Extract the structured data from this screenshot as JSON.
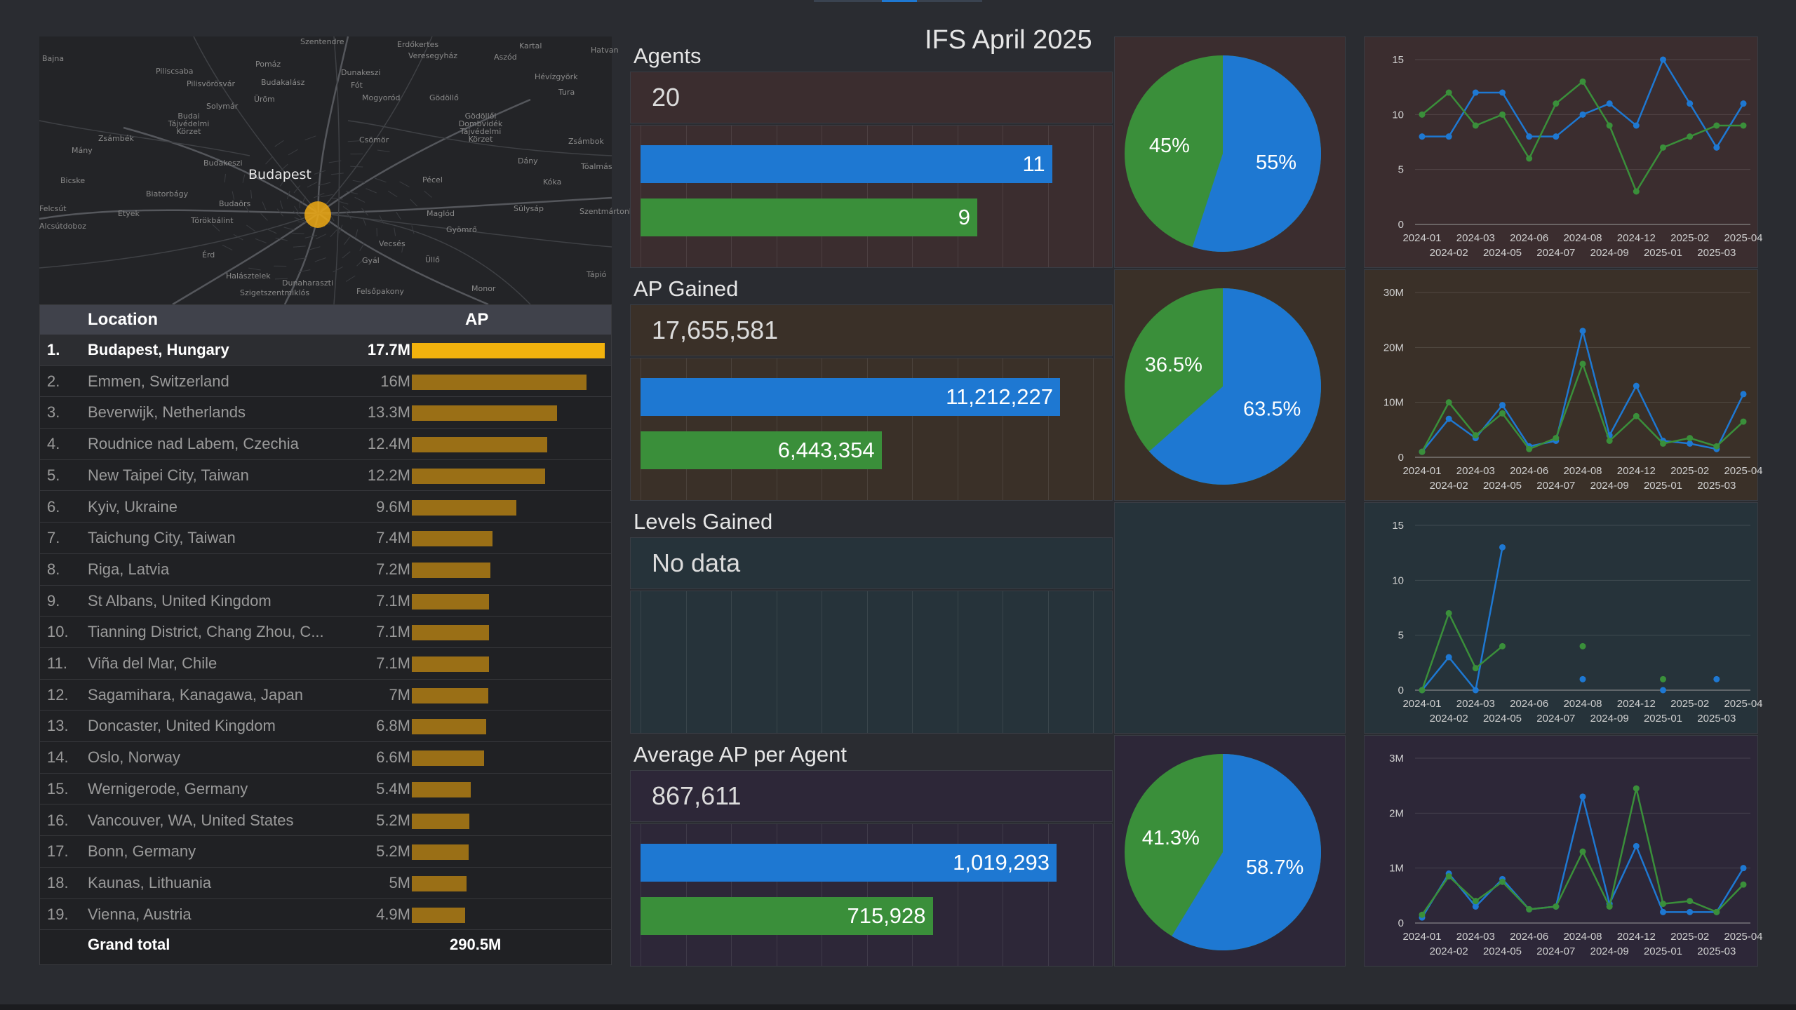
{
  "dashboard": {
    "title": "IFS April 2025"
  },
  "colors": {
    "blue": "#1e78d2",
    "green": "#3a8f3a",
    "gold": "#f2b20d",
    "gold_dim": "#9a6f16"
  },
  "map": {
    "city": "Budapest",
    "labels": [
      "Szentendre",
      "Erdőkertes",
      "Kartal",
      "Hatvan",
      "Veresegyház",
      "Aszód",
      "Bajna",
      "Pomáz",
      "Dunakeszi",
      "Piliscsaba",
      "Pilisvörösvár",
      "Budakalász",
      "Fót",
      "Hévízgyörk",
      "Mogyoród",
      "Gödöllő",
      "Tura",
      "Solymár",
      "Üröm",
      "Budai Tájvédelmi Körzet",
      "Gödöllői Dombvidék Tájvédelmi Körzet",
      "Zsámbék",
      "Csömör",
      "Zsámbok",
      "Mány",
      "Budakeszi",
      "Dány",
      "Tóalmás",
      "Bicske",
      "Biatorbágy",
      "Pécel",
      "Kóka",
      "Etyek",
      "Törökbálint",
      "Budaörs",
      "Maglód",
      "Sülysáp",
      "Szentmártonkáta",
      "Felcsút",
      "Alcsútdoboz",
      "Gyömrő",
      "Érd",
      "Vecsés",
      "Gyál",
      "Üllő",
      "Tápió",
      "Halásztelek",
      "Dunaharaszti",
      "Szigetszentmiklós",
      "Felsőpakony",
      "Monor"
    ]
  },
  "location_table": {
    "headers": {
      "location": "Location",
      "ap": "AP"
    },
    "rows": [
      {
        "num": "1.",
        "location": "Budapest, Hungary",
        "ap_label": "17.7M",
        "ap": 17.7
      },
      {
        "num": "2.",
        "location": "Emmen, Switzerland",
        "ap_label": "16M",
        "ap": 16.0
      },
      {
        "num": "3.",
        "location": "Beverwijk, Netherlands",
        "ap_label": "13.3M",
        "ap": 13.3
      },
      {
        "num": "4.",
        "location": "Roudnice nad Labem, Czechia",
        "ap_label": "12.4M",
        "ap": 12.4
      },
      {
        "num": "5.",
        "location": "New Taipei City, Taiwan",
        "ap_label": "12.2M",
        "ap": 12.2
      },
      {
        "num": "6.",
        "location": "Kyiv, Ukraine",
        "ap_label": "9.6M",
        "ap": 9.6
      },
      {
        "num": "7.",
        "location": "Taichung City, Taiwan",
        "ap_label": "7.4M",
        "ap": 7.4
      },
      {
        "num": "8.",
        "location": "Riga, Latvia",
        "ap_label": "7.2M",
        "ap": 7.2
      },
      {
        "num": "9.",
        "location": "St Albans, United Kingdom",
        "ap_label": "7.1M",
        "ap": 7.1
      },
      {
        "num": "10.",
        "location": "Tianning District, Chang Zhou, C...",
        "ap_label": "7.1M",
        "ap": 7.1
      },
      {
        "num": "11.",
        "location": "Viña del Mar, Chile",
        "ap_label": "7.1M",
        "ap": 7.05
      },
      {
        "num": "12.",
        "location": "Sagamihara, Kanagawa, Japan",
        "ap_label": "7M",
        "ap": 7.0
      },
      {
        "num": "13.",
        "location": "Doncaster, United Kingdom",
        "ap_label": "6.8M",
        "ap": 6.8
      },
      {
        "num": "14.",
        "location": "Oslo, Norway",
        "ap_label": "6.6M",
        "ap": 6.6
      },
      {
        "num": "15.",
        "location": "Wernigerode, Germany",
        "ap_label": "5.4M",
        "ap": 5.4
      },
      {
        "num": "16.",
        "location": "Vancouver, WA, United States",
        "ap_label": "5.2M",
        "ap": 5.25
      },
      {
        "num": "17.",
        "location": "Bonn, Germany",
        "ap_label": "5.2M",
        "ap": 5.2
      },
      {
        "num": "18.",
        "location": "Kaunas, Lithuania",
        "ap_label": "5M",
        "ap": 5.0
      },
      {
        "num": "19.",
        "location": "Vienna, Austria",
        "ap_label": "4.9M",
        "ap": 4.9
      }
    ],
    "grand_total": {
      "label": "Grand total",
      "value": "290.5M"
    }
  },
  "metrics": [
    {
      "id": "agents",
      "title": "Agents",
      "kpi": "20",
      "bg": "#3b2d2f",
      "bars": [
        {
          "label": "11",
          "value": 11
        },
        {
          "label": "9",
          "value": 9
        }
      ],
      "bar_max": 12,
      "pie": [
        55,
        45
      ],
      "pie_labels": [
        "55%",
        "45%"
      ]
    },
    {
      "id": "ap",
      "title": "AP Gained",
      "kpi": "17,655,581",
      "bg": "#3a3028",
      "bars": [
        {
          "label": "11,212,227",
          "value": 11212227
        },
        {
          "label": "6,443,354",
          "value": 6443354
        }
      ],
      "bar_max": 12000000,
      "pie": [
        63.5,
        36.5
      ],
      "pie_labels": [
        "63.5%",
        "36.5%"
      ]
    },
    {
      "id": "levels",
      "title": "Levels Gained",
      "kpi": "No data",
      "bg": "#26333a",
      "bars": [],
      "pie": [],
      "pie_labels": []
    },
    {
      "id": "avg",
      "title": "Average AP per Agent",
      "kpi": "867,611",
      "bg": "#2d2738",
      "bars": [
        {
          "label": "1,019,293",
          "value": 1019293
        },
        {
          "label": "715,928",
          "value": 715928
        }
      ],
      "bar_max": 1100000,
      "pie": [
        58.7,
        41.3
      ],
      "pie_labels": [
        "58.7%",
        "41.3%"
      ]
    }
  ],
  "chart_data": [
    {
      "type": "line",
      "id": "agents_trend",
      "x_top": [
        "2024-01",
        "2024-03",
        "2024-06",
        "2024-08",
        "2024-12",
        "2025-02",
        "2025-04"
      ],
      "x_bottom": [
        "2024-02",
        "2024-05",
        "2024-07",
        "2024-09",
        "2025-01",
        "2025-03"
      ],
      "yticks": [
        0,
        5,
        10,
        15
      ],
      "ytick_labels": [
        "0",
        "5",
        "10",
        "15"
      ],
      "ylim": [
        0,
        15
      ],
      "series": [
        {
          "name": "blue",
          "values": [
            8,
            8,
            12,
            12,
            8,
            8,
            10,
            11,
            9,
            15,
            11,
            7,
            11
          ]
        },
        {
          "name": "green",
          "values": [
            10,
            12,
            9,
            10,
            6,
            11,
            13,
            9,
            3,
            7,
            8,
            9,
            9
          ]
        }
      ]
    },
    {
      "type": "line",
      "id": "ap_trend",
      "x_top": [
        "2024-01",
        "2024-03",
        "2024-06",
        "2024-08",
        "2024-12",
        "2025-02",
        "2025-04"
      ],
      "x_bottom": [
        "2024-02",
        "2024-05",
        "2024-07",
        "2024-09",
        "2025-01",
        "2025-03"
      ],
      "yticks": [
        0,
        10,
        20,
        30
      ],
      "ytick_labels": [
        "0",
        "10M",
        "20M",
        "30M"
      ],
      "ylim": [
        0,
        30
      ],
      "series": [
        {
          "name": "blue",
          "values": [
            1,
            7,
            3.5,
            9.5,
            2,
            3,
            23,
            4,
            13,
            3,
            2.5,
            1.5,
            11.5
          ]
        },
        {
          "name": "green",
          "values": [
            1,
            10,
            4,
            8,
            1.5,
            3.5,
            17,
            3,
            7.5,
            2.5,
            3.5,
            2,
            6.5
          ]
        }
      ]
    },
    {
      "type": "line",
      "id": "levels_trend",
      "x_top": [
        "2024-01",
        "2024-03",
        "2024-06",
        "2024-08",
        "2024-12",
        "2025-02",
        "2025-04"
      ],
      "x_bottom": [
        "2024-02",
        "2024-05",
        "2024-07",
        "2024-09",
        "2025-01",
        "2025-03"
      ],
      "yticks": [
        0,
        5,
        10,
        15
      ],
      "ytick_labels": [
        "0",
        "5",
        "10",
        "15"
      ],
      "ylim": [
        0,
        15
      ],
      "series": [
        {
          "name": "blue",
          "values": [
            0,
            3,
            0,
            13,
            null,
            null,
            1,
            null,
            null,
            0,
            null,
            1,
            null
          ]
        },
        {
          "name": "green",
          "values": [
            0,
            7,
            2,
            4,
            null,
            null,
            4,
            null,
            null,
            1,
            null,
            null,
            null
          ]
        }
      ]
    },
    {
      "type": "line",
      "id": "avg_trend",
      "x_top": [
        "2024-01",
        "2024-03",
        "2024-06",
        "2024-08",
        "2024-12",
        "2025-02",
        "2025-04"
      ],
      "x_bottom": [
        "2024-02",
        "2024-05",
        "2024-07",
        "2024-09",
        "2025-01",
        "2025-03"
      ],
      "yticks": [
        0,
        1,
        2,
        3
      ],
      "ytick_labels": [
        "0",
        "1M",
        "2M",
        "3M"
      ],
      "ylim": [
        0,
        3
      ],
      "series": [
        {
          "name": "blue",
          "values": [
            0.1,
            0.9,
            0.3,
            0.8,
            0.25,
            0.3,
            2.3,
            0.35,
            1.4,
            0.2,
            0.2,
            0.2,
            1.0
          ]
        },
        {
          "name": "green",
          "values": [
            0.15,
            0.85,
            0.4,
            0.75,
            0.25,
            0.3,
            1.3,
            0.3,
            2.45,
            0.35,
            0.4,
            0.2,
            0.7
          ]
        }
      ]
    }
  ]
}
